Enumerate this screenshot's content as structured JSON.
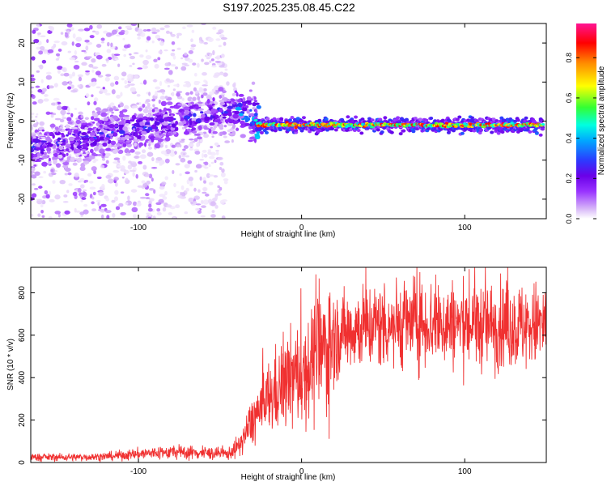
{
  "title": "S197.2025.235.08.45.C22",
  "chart_data": [
    {
      "type": "heatmap",
      "xlabel": "Height of straight line (km)",
      "ylabel": "Frequency (Hz)",
      "xlim": [
        -166,
        150
      ],
      "ylim": [
        -25,
        25
      ],
      "xticks": [
        -100,
        0,
        100
      ],
      "yticks": [
        -20,
        -10,
        0,
        10,
        20
      ],
      "colorbar": {
        "label": "Normalized spectral amplitude",
        "range": [
          0,
          0.97
        ],
        "ticks": [
          0.0,
          0.2,
          0.4,
          0.6,
          0.8
        ],
        "colormap": [
          "#ffffff",
          "#d8b8f8",
          "#9933ff",
          "#6a00e8",
          "#2b3cff",
          "#00a8ff",
          "#00ffe0",
          "#33ff33",
          "#ffff00",
          "#ff8800",
          "#ff0000",
          "#ff1493"
        ]
      },
      "ridge_segments": [
        {
          "x0": -166,
          "x1": -40,
          "f0": -7,
          "f1": 3,
          "amplitude": 0.4
        },
        {
          "x0": -40,
          "x1": -28,
          "f0": 3,
          "f1": 0,
          "amplitude": 0.55
        },
        {
          "x0": -28,
          "x1": 148,
          "f0": -1,
          "f1": -1,
          "amplitude": 0.9
        }
      ]
    },
    {
      "type": "line",
      "xlabel": "Height of straight line (km)",
      "ylabel": "SNR (10 * v/v)",
      "xlim": [
        -166,
        150
      ],
      "ylim": [
        0,
        920
      ],
      "xticks": [
        -100,
        0,
        100
      ],
      "yticks": [
        0,
        200,
        400,
        600,
        800
      ],
      "color": "#f03030",
      "trend": {
        "x": [
          -166,
          -140,
          -120,
          -100,
          -80,
          -60,
          -45,
          -38,
          -30,
          -20,
          -10,
          0,
          10,
          20,
          30,
          50,
          70,
          100,
          130,
          150
        ],
        "y": [
          25,
          25,
          28,
          40,
          50,
          45,
          40,
          80,
          200,
          300,
          380,
          420,
          500,
          580,
          630,
          650,
          660,
          650,
          640,
          650
        ]
      }
    }
  ]
}
